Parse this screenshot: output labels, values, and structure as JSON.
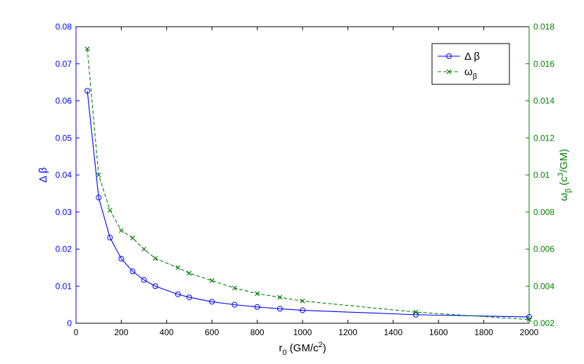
{
  "chart_data": {
    "type": "line",
    "title": "",
    "xlabel": {
      "main": "r",
      "sub": "0",
      "rest": " (GM/c",
      "sup": "2",
      "end": ")"
    },
    "ylabel_left": "Δ β",
    "ylabel_right": {
      "main": "ω",
      "sub": "β",
      "rest": " (c",
      "sup": "3",
      "end": "/GM)"
    },
    "xlim": [
      0,
      2000
    ],
    "ylim_left": [
      0,
      0.08
    ],
    "ylim_right": [
      0.002,
      0.018
    ],
    "x_ticks": [
      "0",
      "200",
      "400",
      "600",
      "800",
      "1000",
      "1200",
      "1400",
      "1600",
      "1800",
      "2000"
    ],
    "y_left_ticks": [
      "0",
      "0.01",
      "0.02",
      "0.03",
      "0.04",
      "0.05",
      "0.06",
      "0.07",
      "0.08"
    ],
    "y_right_ticks": [
      "0.002",
      "0.004",
      "0.006",
      "0.008",
      "0.01",
      "0.012",
      "0.014",
      "0.016",
      "0.018"
    ],
    "grid": false,
    "legend_position": "top-right",
    "colors": {
      "left_axis": "#0000ff",
      "right_axis": "#008000",
      "frame": "#000000"
    },
    "series": [
      {
        "name": "Δ β",
        "axis": "left",
        "color": "#0000ff",
        "line": "solid",
        "marker": "circle",
        "x": [
          50,
          100,
          150,
          200,
          250,
          300,
          350,
          450,
          500,
          600,
          700,
          800,
          900,
          1000,
          1500,
          2000
        ],
        "y": [
          0.0627,
          0.0339,
          0.0231,
          0.0174,
          0.014,
          0.0117,
          0.01,
          0.0078,
          0.007,
          0.0058,
          0.005,
          0.0044,
          0.0039,
          0.0035,
          0.0023,
          0.0017
        ]
      },
      {
        "name": "ω_β",
        "axis": "right",
        "color": "#008000",
        "line": "dashed",
        "marker": "x",
        "x": [
          50,
          100,
          150,
          200,
          250,
          300,
          350,
          450,
          500,
          600,
          700,
          800,
          900,
          1000,
          1500,
          2000
        ],
        "y": [
          0.0168,
          0.01,
          0.0081,
          0.007,
          0.0066,
          0.006,
          0.0055,
          0.005,
          0.0047,
          0.0043,
          0.0039,
          0.0036,
          0.0034,
          0.0032,
          0.0026,
          0.0022
        ]
      }
    ],
    "legend": [
      {
        "main": "Δ β",
        "sub": ""
      },
      {
        "main": "ω",
        "sub": "β"
      }
    ]
  }
}
